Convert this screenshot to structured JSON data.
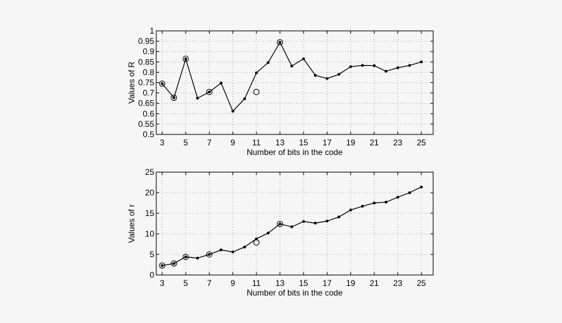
{
  "chart_data": [
    {
      "type": "line",
      "xlabel": "Number of bits in the code",
      "ylabel": "Values of R",
      "xlim": [
        2.5,
        26
      ],
      "ylim": [
        0.5,
        1
      ],
      "xticks": [
        3,
        5,
        7,
        9,
        11,
        13,
        15,
        17,
        19,
        21,
        23,
        25
      ],
      "yticks": [
        0.5,
        0.55,
        0.6,
        0.65,
        0.7,
        0.75,
        0.8,
        0.85,
        0.9,
        0.95,
        1
      ],
      "ytick_labels": [
        "0.5",
        "0.55",
        "0.6",
        "0.65",
        "0.7",
        "0.75",
        "0.8",
        "0.85",
        "0.9",
        "0.95",
        "1"
      ],
      "grid": true,
      "series": [
        {
          "style": "line-with-dots",
          "x": [
            3,
            4,
            5,
            6,
            7,
            8,
            9,
            10,
            11,
            12,
            13,
            14,
            15,
            16,
            17,
            18,
            19,
            20,
            21,
            22,
            23,
            24,
            25
          ],
          "y": [
            0.745,
            0.677,
            0.865,
            0.675,
            0.705,
            0.748,
            0.612,
            0.672,
            0.797,
            0.847,
            0.945,
            0.83,
            0.865,
            0.785,
            0.77,
            0.79,
            0.827,
            0.833,
            0.832,
            0.805,
            0.822,
            0.833,
            0.85
          ]
        },
        {
          "style": "open-circles",
          "x": [
            3,
            4,
            5,
            7,
            11,
            13
          ],
          "y": [
            0.745,
            0.677,
            0.865,
            0.705,
            0.705,
            0.945
          ]
        }
      ]
    },
    {
      "type": "line",
      "xlabel": "Number of bits in the code",
      "ylabel": "Values of r",
      "xlim": [
        2.5,
        26
      ],
      "ylim": [
        0,
        25
      ],
      "xticks": [
        3,
        5,
        7,
        9,
        11,
        13,
        15,
        17,
        19,
        21,
        23,
        25
      ],
      "yticks": [
        0,
        5,
        10,
        15,
        20,
        25
      ],
      "ytick_labels": [
        "0",
        "5",
        "10",
        "15",
        "20",
        "25"
      ],
      "grid": true,
      "series": [
        {
          "style": "line-with-dots",
          "x": [
            3,
            4,
            5,
            6,
            7,
            8,
            9,
            10,
            11,
            12,
            13,
            14,
            15,
            16,
            17,
            18,
            19,
            20,
            21,
            22,
            23,
            24,
            25
          ],
          "y": [
            2.3,
            2.8,
            4.4,
            4.1,
            5.0,
            6.1,
            5.6,
            6.8,
            8.8,
            10.2,
            12.4,
            11.7,
            13.0,
            12.6,
            13.1,
            14.1,
            15.8,
            16.7,
            17.5,
            17.7,
            18.9,
            20.0,
            21.4
          ]
        },
        {
          "style": "open-circles",
          "x": [
            3,
            4,
            5,
            7,
            11,
            13
          ],
          "y": [
            2.3,
            2.8,
            4.4,
            5.0,
            7.9,
            12.4
          ]
        }
      ]
    }
  ]
}
